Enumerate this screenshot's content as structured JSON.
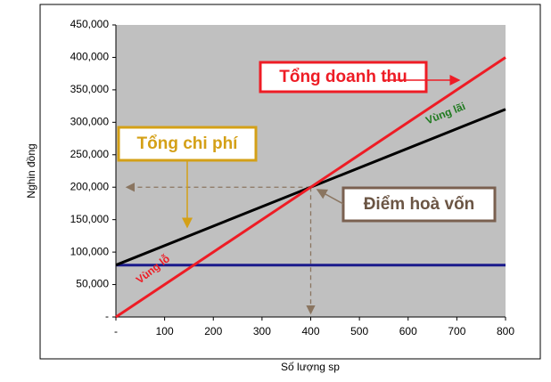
{
  "chart_data": {
    "type": "line",
    "x_label": "Số lượng sp",
    "y_label": "Nghin đồng",
    "x": [
      0,
      800
    ],
    "series": [
      {
        "name": "Tổng doanh thu",
        "color": "#ee1c25",
        "values": [
          0,
          400000
        ]
      },
      {
        "name": "Tổng chi phí",
        "color": "#000000",
        "values": [
          80000,
          320000
        ]
      },
      {
        "color": "#1a1a8c",
        "values": [
          80000,
          80000
        ]
      }
    ],
    "xlim": [
      0,
      800
    ],
    "xticks": [
      {
        "value": 0,
        "label": "-"
      },
      100,
      200,
      300,
      400,
      500,
      600,
      700,
      800
    ],
    "ylim": [
      0,
      450000
    ],
    "yticks": [
      {
        "value": 0,
        "label": "-"
      },
      {
        "value": 50000,
        "label": "50,000"
      },
      {
        "value": 100000,
        "label": "100,000"
      },
      {
        "value": 150000,
        "label": "150,000"
      },
      {
        "value": 200000,
        "label": "200,000"
      },
      {
        "value": 250000,
        "label": "250,000"
      },
      {
        "value": 300000,
        "label": "300,000"
      },
      {
        "value": 350000,
        "label": "350,000"
      },
      {
        "value": 400000,
        "label": "400,000"
      },
      {
        "value": 450000,
        "label": "450,000"
      }
    ],
    "annotations": [
      "Vùng lãi",
      "Vùng lỗ",
      "Điểm hoà vốn"
    ],
    "break_even": {
      "x": 400,
      "y": 200000
    }
  }
}
